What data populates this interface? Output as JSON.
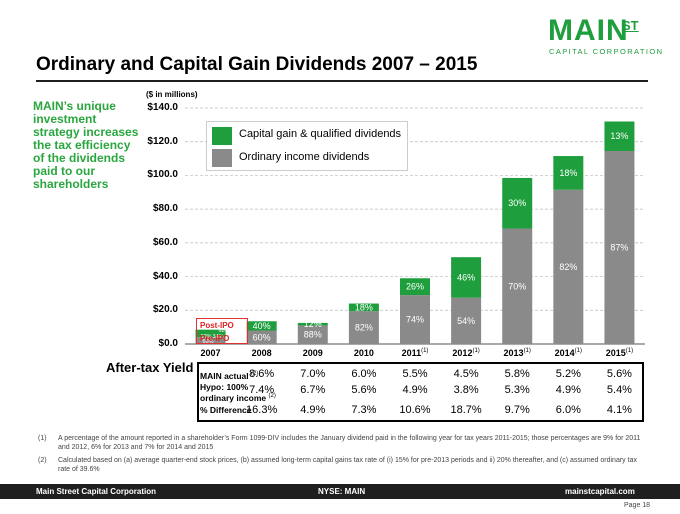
{
  "logo": {
    "main": "MAIN",
    "st": "ST",
    "sub": "CAPITAL CORPORATION"
  },
  "title": "Ordinary and Capital Gain Dividends 2007 – 2015",
  "side_text": "MAIN’s unique investment strategy increases the tax efficiency of the dividends paid to our shareholders",
  "colors": {
    "green": "#1f9e3d",
    "gray": "#8a8a8a",
    "dark": "#1f1f1f"
  },
  "legend": {
    "capital": "Capital gain & qualified dividends",
    "ordinary": "Ordinary income dividends"
  },
  "ipo": {
    "post": "Post-IPO",
    "pre": "Pre-IPO"
  },
  "chart_data": {
    "type": "bar",
    "stacked": true,
    "unit_label": "($ in millions)",
    "ylim": [
      0,
      140
    ],
    "yticks": [
      "$0.0",
      "$20.0",
      "$40.0",
      "$60.0",
      "$80.0",
      "$100.0",
      "$120.0",
      "$140.0"
    ],
    "categories": [
      "2007",
      "2008",
      "2009",
      "2010",
      "2011",
      "2012",
      "2013",
      "2014",
      "2015"
    ],
    "footnote_marks": [
      "",
      "",
      "",
      "",
      "(1)",
      "(1)",
      "(1)",
      "(1)",
      "(1)"
    ],
    "series": [
      {
        "name": "Ordinary income dividends",
        "values": [
          4,
          8,
          11,
          19.5,
          29,
          27.5,
          68.5,
          91.5,
          114.5
        ],
        "labels": [
          "",
          "60%",
          "88%",
          "82%",
          "74%",
          "54%",
          "70%",
          "82%",
          "87%"
        ]
      },
      {
        "name": "Capital gain & qualified dividends",
        "values": [
          4.5,
          5.5,
          1.5,
          4.5,
          10,
          24,
          30,
          20,
          17.5
        ],
        "labels": [
          "",
          "40%",
          "12%",
          "18%",
          "26%",
          "46%",
          "30%",
          "18%",
          "13%"
        ]
      }
    ],
    "pre_ipo_split": {
      "post_ordinary": "32%",
      "post_capital": "34%",
      "post_top": "68%",
      "pre": "66%"
    }
  },
  "yield": {
    "title": "After-tax Yield",
    "rows": [
      {
        "label": "MAIN actual",
        "mark": "(2)",
        "values": [
          "8.6%",
          "7.0%",
          "6.0%",
          "5.5%",
          "4.5%",
          "5.8%",
          "5.2%",
          "5.6%"
        ]
      },
      {
        "label": "Hypo: 100% ordinary income",
        "mark": "(2)",
        "values": [
          "7.4%",
          "6.7%",
          "5.6%",
          "4.9%",
          "3.8%",
          "5.3%",
          "4.9%",
          "5.4%"
        ]
      },
      {
        "label": "% Difference",
        "mark": "",
        "values": [
          "16.3%",
          "4.9%",
          "7.3%",
          "10.6%",
          "18.7%",
          "9.7%",
          "6.0%",
          "4.1%"
        ]
      }
    ]
  },
  "notes": [
    {
      "num": "(1)",
      "text": "A percentage of the amount reported in a shareholder’s Form 1099-DIV includes the January dividend paid in the following year for tax years 2011-2015; those percentages are 9% for 2011 and 2012, 6% for 2013 and 7% for 2014 and 2015"
    },
    {
      "num": "(2)",
      "text": "Calculated based on (a) average quarter-end stock prices, (b) assumed long-term capital gains tax rate of (i) 15% for pre-2013 periods and ii) 20% thereafter, and (c) assumed ordinary tax rate of 39.6%"
    }
  ],
  "footer": {
    "left": "Main Street Capital Corporation",
    "center": "NYSE: MAIN",
    "right": "mainstcapital.com"
  },
  "page": "Page 18"
}
